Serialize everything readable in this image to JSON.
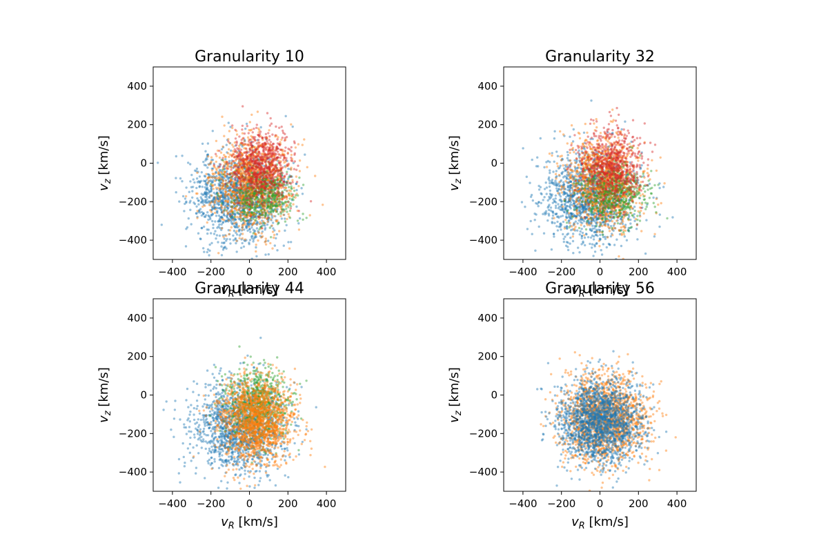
{
  "figure": {
    "background": "#ffffff"
  },
  "chart_data": [
    {
      "type": "scatter",
      "title": "Granularity 10",
      "xlabel_main": "v",
      "xlabel_sub": "R",
      "xlabel_unit": " [km/s]",
      "ylabel_main": "v",
      "ylabel_sub": "z",
      "ylabel_unit": " [km/s]",
      "xlim": [
        -500,
        500
      ],
      "ylim": [
        -500,
        500
      ],
      "xticks": [
        -400,
        -200,
        0,
        200,
        400
      ],
      "yticks": [
        -400,
        -200,
        0,
        200,
        400
      ],
      "xtick_labels": [
        "−400",
        "−200",
        "0",
        "200",
        "400"
      ],
      "ytick_labels": [
        "−400",
        "−200",
        "0",
        "200",
        "400"
      ],
      "series": [
        {
          "color": "#1f77b4",
          "center": [
            -60,
            -170
          ],
          "spread": [
            120,
            120
          ],
          "n": 1400,
          "seed": 11
        },
        {
          "color": "#ff7f0e",
          "center": [
            20,
            -100
          ],
          "spread": [
            95,
            115
          ],
          "n": 1300,
          "seed": 12
        },
        {
          "color": "#2ca02c",
          "center": [
            60,
            -170
          ],
          "spread": [
            85,
            70
          ],
          "n": 450,
          "seed": 13
        },
        {
          "color": "#d62728",
          "center": [
            60,
            -20
          ],
          "spread": [
            80,
            95
          ],
          "n": 750,
          "seed": 14
        }
      ]
    },
    {
      "type": "scatter",
      "title": "Granularity 32",
      "xlabel_main": "v",
      "xlabel_sub": "R",
      "xlabel_unit": " [km/s]",
      "ylabel_main": "v",
      "ylabel_sub": "z",
      "ylabel_unit": " [km/s]",
      "xlim": [
        -500,
        500
      ],
      "ylim": [
        -500,
        500
      ],
      "xticks": [
        -400,
        -200,
        0,
        200,
        400
      ],
      "yticks": [
        -400,
        -200,
        0,
        200,
        400
      ],
      "xtick_labels": [
        "−400",
        "−200",
        "0",
        "200",
        "400"
      ],
      "ytick_labels": [
        "−400",
        "−200",
        "0",
        "200",
        "400"
      ],
      "series": [
        {
          "color": "#1f77b4",
          "center": [
            -60,
            -175
          ],
          "spread": [
            120,
            120
          ],
          "n": 1400,
          "seed": 21
        },
        {
          "color": "#ff7f0e",
          "center": [
            20,
            -100
          ],
          "spread": [
            95,
            115
          ],
          "n": 1300,
          "seed": 22
        },
        {
          "color": "#2ca02c",
          "center": [
            60,
            -165
          ],
          "spread": [
            85,
            75
          ],
          "n": 500,
          "seed": 23
        },
        {
          "color": "#d62728",
          "center": [
            55,
            -15
          ],
          "spread": [
            80,
            95
          ],
          "n": 700,
          "seed": 24
        }
      ]
    },
    {
      "type": "scatter",
      "title": "Granularity 44",
      "xlabel_main": "v",
      "xlabel_sub": "R",
      "xlabel_unit": " [km/s]",
      "ylabel_main": "v",
      "ylabel_sub": "z",
      "ylabel_unit": " [km/s]",
      "xlim": [
        -500,
        500
      ],
      "ylim": [
        -500,
        500
      ],
      "xticks": [
        -400,
        -200,
        0,
        200,
        400
      ],
      "yticks": [
        -400,
        -200,
        0,
        200,
        400
      ],
      "xtick_labels": [
        "−400",
        "−200",
        "0",
        "200",
        "400"
      ],
      "ytick_labels": [
        "−400",
        "−200",
        "0",
        "200",
        "400"
      ],
      "series": [
        {
          "color": "#1f77b4",
          "center": [
            -50,
            -170
          ],
          "spread": [
            120,
            120
          ],
          "n": 1400,
          "seed": 31
        },
        {
          "color": "#2ca02c",
          "center": [
            40,
            -50
          ],
          "spread": [
            80,
            95
          ],
          "n": 700,
          "seed": 33
        },
        {
          "color": "#ff7f0e",
          "center": [
            40,
            -130
          ],
          "spread": [
            95,
            105
          ],
          "n": 1600,
          "seed": 32
        }
      ]
    },
    {
      "type": "scatter",
      "title": "Granularity 56",
      "xlabel_main": "v",
      "xlabel_sub": "R",
      "xlabel_unit": " [km/s]",
      "ylabel_main": "v",
      "ylabel_sub": "z",
      "ylabel_unit": " [km/s]",
      "xlim": [
        -500,
        500
      ],
      "ylim": [
        -500,
        500
      ],
      "xticks": [
        -400,
        -200,
        0,
        200,
        400
      ],
      "yticks": [
        -400,
        -200,
        0,
        200,
        400
      ],
      "xtick_labels": [
        "−400",
        "−200",
        "0",
        "200",
        "400"
      ],
      "ytick_labels": [
        "−400",
        "−200",
        "0",
        "200",
        "400"
      ],
      "series": [
        {
          "color": "#ff7f0e",
          "center": [
            20,
            -120
          ],
          "spread": [
            110,
            115
          ],
          "n": 1700,
          "seed": 42
        },
        {
          "color": "#1f77b4",
          "center": [
            0,
            -140
          ],
          "spread": [
            105,
            110
          ],
          "n": 1800,
          "seed": 41
        }
      ]
    }
  ]
}
